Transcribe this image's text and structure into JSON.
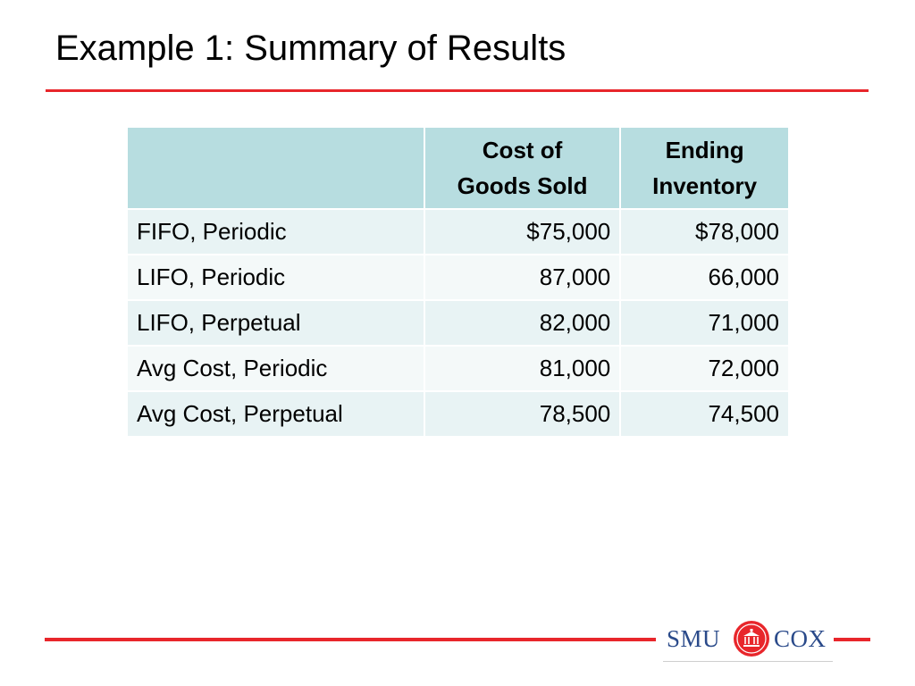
{
  "slide": {
    "title": "Example 1: Summary of Results"
  },
  "table": {
    "headers": [
      "",
      "Cost of\nGoods Sold",
      "Ending\nInventory"
    ],
    "header_lines": {
      "col2": [
        "Cost of",
        "Goods Sold"
      ],
      "col3": [
        "Ending",
        "Inventory"
      ]
    },
    "rows": [
      {
        "method": "FIFO, Periodic",
        "cogs": "$75,000",
        "ending_inventory": "$78,000"
      },
      {
        "method": "LIFO, Periodic",
        "cogs": "87,000",
        "ending_inventory": "66,000"
      },
      {
        "method": "LIFO, Perpetual",
        "cogs": "82,000",
        "ending_inventory": "71,000"
      },
      {
        "method": "Avg Cost, Periodic",
        "cogs": "81,000",
        "ending_inventory": "72,000"
      },
      {
        "method": "Avg Cost, Perpetual",
        "cogs": "78,500",
        "ending_inventory": "74,500"
      }
    ]
  },
  "footer": {
    "logo_left": "SMU",
    "logo_right": "COX",
    "logo_icon": "smu-seal-icon"
  },
  "colors": {
    "accent_red": "#e8262b",
    "header_fill": "#b7dde0",
    "row_fill": "#e8f3f4",
    "logo_blue": "#2a4a8a"
  }
}
